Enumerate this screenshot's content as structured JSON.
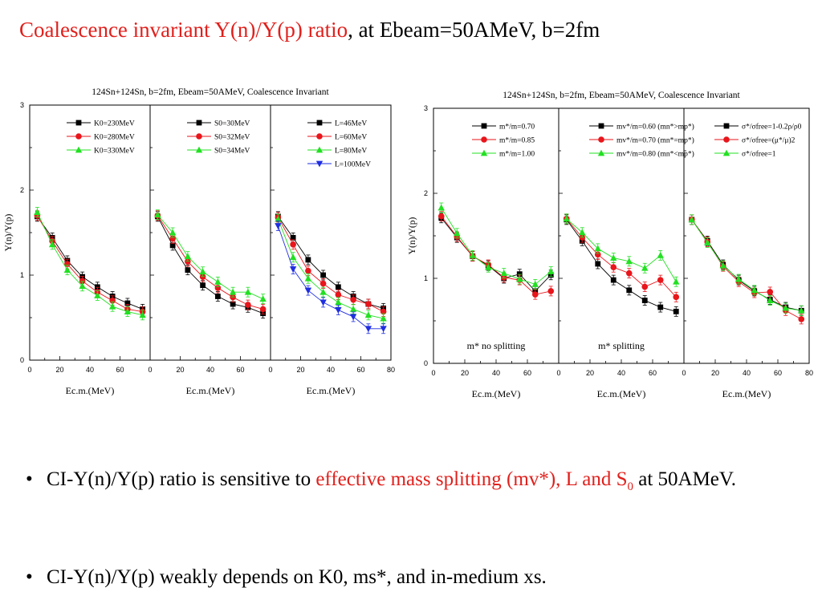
{
  "slide": {
    "title_red": "Coalescence invariant Y(n)/Y(p) ratio",
    "title_black": ", at Ebeam=50AMeV, b=2fm",
    "bullet1": {
      "text_a": "CI-Y(n)/Y(p) ratio is sensitive to ",
      "text_red": "effective mass splitting (mv*), L and S",
      "text_red_sub": "0",
      "text_b": " at 50AMeV."
    },
    "bullet2": {
      "text": "CI-Y(n)/Y(p) weakly depends on K0, ms*, and in-medium xs."
    }
  },
  "chart_data": [
    {
      "type": "line",
      "figure_title": "124Sn+124Sn, b=2fm, Ebeam=50AMeV, Coalescence Invariant",
      "ylabel": "Y(n)/Y(p)",
      "ylim": [
        0,
        3
      ],
      "yticks": [
        "0",
        "1",
        "2",
        "3"
      ],
      "panels": [
        {
          "xlabel": "Ec.m.(MeV)",
          "xlim": [
            0,
            80
          ],
          "xticks": [
            "0",
            "20",
            "40",
            "60"
          ],
          "annotation": "",
          "series": [
            {
              "name": "K0=230MeV",
              "color": "#000000",
              "marker": "square",
              "x": [
                5,
                15,
                25,
                35,
                45,
                55,
                65,
                75
              ],
              "y": [
                1.69,
                1.44,
                1.17,
                0.98,
                0.86,
                0.75,
                0.67,
                0.6
              ]
            },
            {
              "name": "K0=280MeV",
              "color": "#e8151b",
              "marker": "circle",
              "x": [
                5,
                15,
                25,
                35,
                45,
                55,
                65,
                75
              ],
              "y": [
                1.7,
                1.4,
                1.13,
                0.93,
                0.8,
                0.7,
                0.6,
                0.57
              ]
            },
            {
              "name": "K0=330MeV",
              "color": "#22e022",
              "marker": "triangle-up",
              "x": [
                5,
                15,
                25,
                35,
                45,
                55,
                65,
                75
              ],
              "y": [
                1.74,
                1.36,
                1.06,
                0.87,
                0.76,
                0.63,
                0.57,
                0.53
              ]
            }
          ]
        },
        {
          "xlabel": "Ec.m.(MeV)",
          "xlim": [
            0,
            80
          ],
          "xticks": [
            "0",
            "20",
            "40",
            "60"
          ],
          "annotation": "",
          "series": [
            {
              "name": "S0=30MeV",
              "color": "#000000",
              "marker": "square",
              "x": [
                5,
                15,
                25,
                35,
                45,
                55,
                65,
                75
              ],
              "y": [
                1.69,
                1.35,
                1.06,
                0.88,
                0.75,
                0.66,
                0.62,
                0.55
              ]
            },
            {
              "name": "S0=32MeV",
              "color": "#e8151b",
              "marker": "circle",
              "x": [
                5,
                15,
                25,
                35,
                45,
                55,
                65,
                75
              ],
              "y": [
                1.7,
                1.43,
                1.16,
                0.98,
                0.85,
                0.74,
                0.65,
                0.6
              ]
            },
            {
              "name": "S0=34MeV",
              "color": "#22e022",
              "marker": "triangle-up",
              "x": [
                5,
                15,
                25,
                35,
                45,
                55,
                65,
                75
              ],
              "y": [
                1.71,
                1.5,
                1.22,
                1.04,
                0.92,
                0.8,
                0.8,
                0.72
              ]
            }
          ]
        },
        {
          "xlabel": "Ec.m.(MeV)",
          "xlim": [
            0,
            80
          ],
          "xticks": [
            "0",
            "20",
            "40",
            "60",
            "80"
          ],
          "annotation": "",
          "series": [
            {
              "name": "L=46MeV",
              "color": "#000000",
              "marker": "square",
              "x": [
                5,
                15,
                25,
                35,
                45,
                55,
                65,
                75
              ],
              "y": [
                1.69,
                1.44,
                1.18,
                1.0,
                0.86,
                0.75,
                0.66,
                0.61
              ]
            },
            {
              "name": "L=60MeV",
              "color": "#e8151b",
              "marker": "circle",
              "x": [
                5,
                15,
                25,
                35,
                45,
                55,
                65,
                75
              ],
              "y": [
                1.68,
                1.36,
                1.05,
                0.9,
                0.77,
                0.71,
                0.66,
                0.57
              ]
            },
            {
              "name": "L=80MeV",
              "color": "#22e022",
              "marker": "triangle-up",
              "x": [
                5,
                15,
                25,
                35,
                45,
                55,
                65,
                75
              ],
              "y": [
                1.66,
                1.21,
                0.96,
                0.8,
                0.68,
                0.6,
                0.53,
                0.49
              ]
            },
            {
              "name": "L=100MeV",
              "color": "#1f2ee0",
              "marker": "triangle-down",
              "x": [
                5,
                15,
                25,
                35,
                45,
                55,
                65,
                75
              ],
              "y": [
                1.58,
                1.07,
                0.82,
                0.68,
                0.59,
                0.51,
                0.37,
                0.37
              ]
            }
          ]
        }
      ]
    },
    {
      "type": "line",
      "figure_title": "124Sn+124Sn, b=2fm, Ebeam=50AMeV, Coalescence Invariant",
      "ylabel": "Y(n)/Y(p)",
      "ylim": [
        0,
        3
      ],
      "yticks": [
        "0",
        "1",
        "2",
        "3"
      ],
      "panels": [
        {
          "xlabel": "Ec.m.(MeV)",
          "xlim": [
            0,
            80
          ],
          "xticks": [
            "0",
            "20",
            "40",
            "60"
          ],
          "annotation": "m* no splitting",
          "series": [
            {
              "name": "m*/m=0.70",
              "color": "#000000",
              "marker": "square",
              "x": [
                5,
                15,
                25,
                35,
                45,
                55,
                65,
                75
              ],
              "y": [
                1.71,
                1.48,
                1.26,
                1.15,
                1.0,
                1.05,
                0.85,
                1.04
              ]
            },
            {
              "name": "m*/m=0.85",
              "color": "#e8151b",
              "marker": "circle",
              "x": [
                5,
                15,
                25,
                35,
                45,
                55,
                65,
                75
              ],
              "y": [
                1.73,
                1.49,
                1.26,
                1.16,
                1.01,
                0.98,
                0.81,
                0.85
              ]
            },
            {
              "name": "m*/m=1.00",
              "color": "#22e022",
              "marker": "triangle-up",
              "x": [
                5,
                15,
                25,
                35,
                45,
                55,
                65,
                75
              ],
              "y": [
                1.83,
                1.53,
                1.27,
                1.13,
                1.06,
                0.99,
                0.93,
                1.08
              ]
            }
          ]
        },
        {
          "xlabel": "Ec.m.(MeV)",
          "xlim": [
            0,
            80
          ],
          "xticks": [
            "0",
            "20",
            "40",
            "60"
          ],
          "annotation": "m* splitting",
          "series": [
            {
              "name": "mv*/m=0.60 (mn*>mp*)",
              "color": "#000000",
              "marker": "square",
              "x": [
                5,
                15,
                25,
                35,
                45,
                55,
                65,
                75
              ],
              "y": [
                1.69,
                1.44,
                1.17,
                0.98,
                0.86,
                0.74,
                0.66,
                0.61
              ]
            },
            {
              "name": "mv*/m=0.70 (mn*=mp*)",
              "color": "#e8151b",
              "marker": "circle",
              "x": [
                5,
                15,
                25,
                35,
                45,
                55,
                65,
                75
              ],
              "y": [
                1.7,
                1.48,
                1.28,
                1.13,
                1.06,
                0.9,
                0.98,
                0.78
              ]
            },
            {
              "name": "mv*/m=0.80 (mn*<mp*)",
              "color": "#22e022",
              "marker": "triangle-up",
              "x": [
                5,
                15,
                25,
                35,
                45,
                55,
                65,
                75
              ],
              "y": [
                1.7,
                1.54,
                1.35,
                1.24,
                1.2,
                1.12,
                1.27,
                0.96
              ]
            }
          ]
        },
        {
          "xlabel": "Ec.m.(MeV)",
          "xlim": [
            0,
            80
          ],
          "xticks": [
            "0",
            "20",
            "40",
            "60",
            "80"
          ],
          "annotation": "",
          "series": [
            {
              "name": "σ*/σfree=1-0.2ρ/ρ0",
              "color": "#000000",
              "marker": "square",
              "x": [
                5,
                15,
                25,
                35,
                45,
                55,
                65,
                75
              ],
              "y": [
                1.69,
                1.44,
                1.16,
                0.98,
                0.85,
                0.75,
                0.66,
                0.62
              ]
            },
            {
              "name": "σ*/σfree=(μ*/μ)2",
              "color": "#e8151b",
              "marker": "circle",
              "x": [
                5,
                15,
                25,
                35,
                45,
                55,
                65,
                75
              ],
              "y": [
                1.69,
                1.43,
                1.14,
                0.96,
                0.83,
                0.84,
                0.62,
                0.52
              ]
            },
            {
              "name": "σ*/σfree=1",
              "color": "#22e022",
              "marker": "triangle-up",
              "x": [
                5,
                15,
                25,
                35,
                45,
                55,
                65,
                75
              ],
              "y": [
                1.69,
                1.42,
                1.15,
                0.99,
                0.86,
                0.74,
                0.65,
                0.62
              ]
            }
          ]
        }
      ]
    }
  ]
}
